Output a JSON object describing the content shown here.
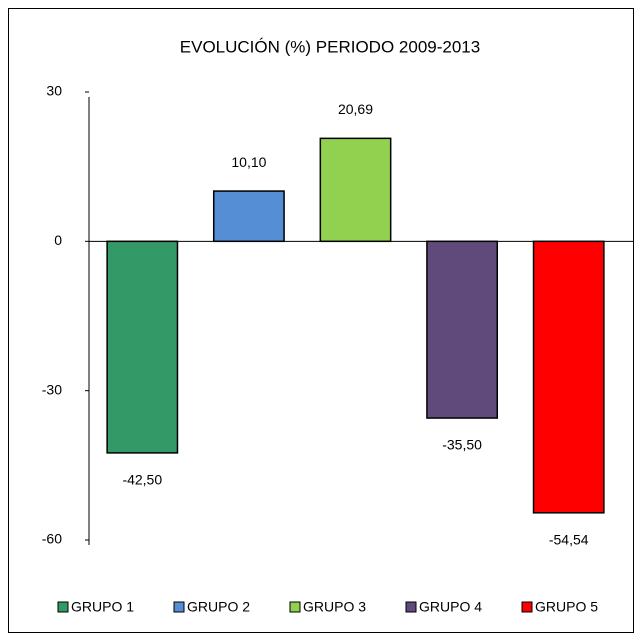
{
  "chart_data": {
    "type": "bar",
    "title": "EVOLUCIÓN (%) PERIODO 2009-2013",
    "categories": [
      "GRUPO 1",
      "GRUPO 2",
      "GRUPO 3",
      "GRUPO 4",
      "GRUPO 5"
    ],
    "values": [
      -42.5,
      10.1,
      20.69,
      -35.5,
      -54.54
    ],
    "value_labels": [
      "-42,50",
      "10,10",
      "20,69",
      "-35,50",
      "-54,54"
    ],
    "colors": [
      "#339966",
      "#558ed5",
      "#92d050",
      "#604a7b",
      "#ff0000"
    ],
    "ylim": [
      -60,
      30
    ],
    "yticks": [
      30,
      0,
      -30,
      -60
    ],
    "grid": false
  }
}
